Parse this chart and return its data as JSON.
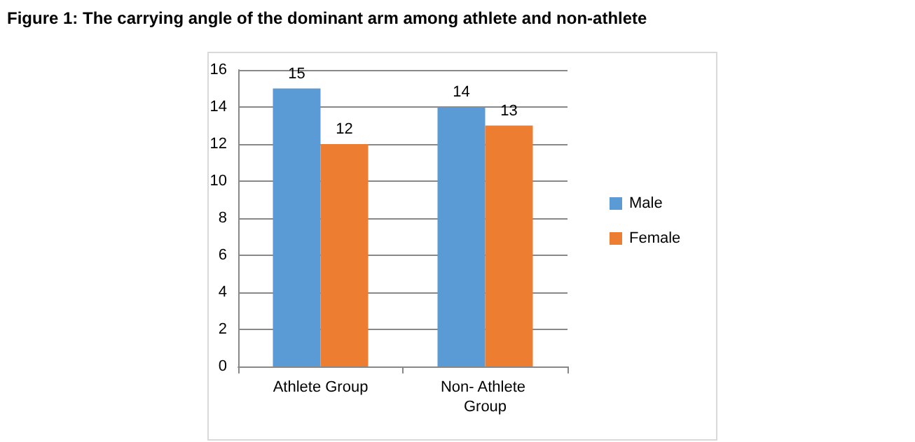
{
  "chart_data": {
    "type": "bar",
    "title": "Figure 1: The carrying angle of the dominant arm among athlete and non-athlete",
    "categories": [
      "Athlete Group",
      "Non- Athlete Group"
    ],
    "series": [
      {
        "name": "Male",
        "color": "#5b9bd5",
        "values": [
          15,
          14
        ]
      },
      {
        "name": "Female",
        "color": "#ed7d31",
        "values": [
          12,
          13
        ]
      }
    ],
    "ylim": [
      0,
      16
    ],
    "yticks": [
      0,
      2,
      4,
      6,
      8,
      10,
      12,
      14,
      16
    ],
    "grid": "y",
    "legend": "right",
    "data_labels": true
  }
}
